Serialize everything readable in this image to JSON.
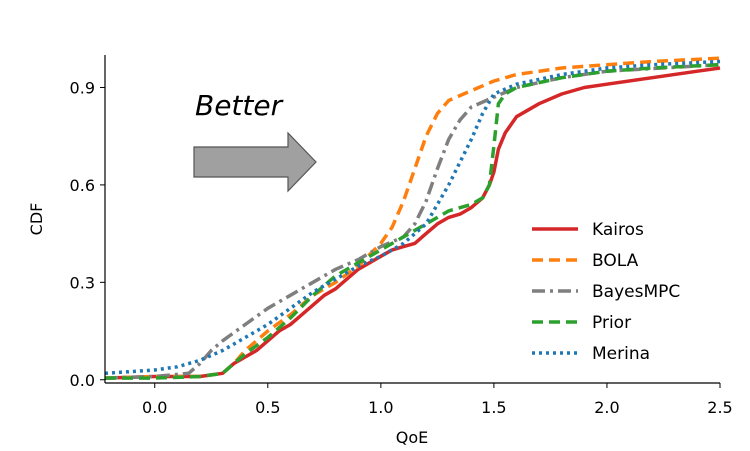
{
  "chart_data": {
    "type": "line",
    "xlabel": "QoE",
    "ylabel": "CDF",
    "xlim": [
      -0.22,
      2.5
    ],
    "ylim": [
      -0.01,
      1.0
    ],
    "xticks": [
      0.0,
      0.5,
      1.0,
      1.5,
      2.0,
      2.5
    ],
    "xtick_labels": [
      "0.0",
      "0.5",
      "1.0",
      "1.5",
      "2.0",
      "2.5"
    ],
    "yticks": [
      0.0,
      0.3,
      0.6,
      0.9
    ],
    "ytick_labels": [
      "0.0",
      "0.3",
      "0.6",
      "0.9"
    ],
    "legend_position": "lower-right",
    "annotation": {
      "text": "Better",
      "arrow_direction": "right"
    },
    "series": [
      {
        "name": "Kairos",
        "color": "#d62728",
        "dash": "solid",
        "points": [
          [
            -0.22,
            0.005
          ],
          [
            0.0,
            0.01
          ],
          [
            0.2,
            0.01
          ],
          [
            0.3,
            0.02
          ],
          [
            0.35,
            0.05
          ],
          [
            0.4,
            0.07
          ],
          [
            0.45,
            0.09
          ],
          [
            0.5,
            0.12
          ],
          [
            0.55,
            0.15
          ],
          [
            0.6,
            0.17
          ],
          [
            0.65,
            0.2
          ],
          [
            0.7,
            0.23
          ],
          [
            0.75,
            0.26
          ],
          [
            0.8,
            0.28
          ],
          [
            0.85,
            0.31
          ],
          [
            0.9,
            0.34
          ],
          [
            0.95,
            0.36
          ],
          [
            1.0,
            0.38
          ],
          [
            1.05,
            0.4
          ],
          [
            1.1,
            0.41
          ],
          [
            1.15,
            0.42
          ],
          [
            1.2,
            0.45
          ],
          [
            1.25,
            0.48
          ],
          [
            1.3,
            0.5
          ],
          [
            1.35,
            0.51
          ],
          [
            1.4,
            0.53
          ],
          [
            1.45,
            0.56
          ],
          [
            1.48,
            0.6
          ],
          [
            1.5,
            0.64
          ],
          [
            1.52,
            0.71
          ],
          [
            1.55,
            0.76
          ],
          [
            1.6,
            0.81
          ],
          [
            1.7,
            0.85
          ],
          [
            1.8,
            0.88
          ],
          [
            1.9,
            0.9
          ],
          [
            2.0,
            0.91
          ],
          [
            2.2,
            0.93
          ],
          [
            2.4,
            0.95
          ],
          [
            2.5,
            0.96
          ]
        ]
      },
      {
        "name": "BOLA",
        "color": "#ff7f0e",
        "dash": "dashed",
        "points": [
          [
            -0.22,
            0.005
          ],
          [
            0.0,
            0.01
          ],
          [
            0.2,
            0.01
          ],
          [
            0.3,
            0.02
          ],
          [
            0.35,
            0.05
          ],
          [
            0.4,
            0.09
          ],
          [
            0.45,
            0.12
          ],
          [
            0.5,
            0.15
          ],
          [
            0.6,
            0.2
          ],
          [
            0.7,
            0.26
          ],
          [
            0.8,
            0.3
          ],
          [
            0.9,
            0.35
          ],
          [
            1.0,
            0.42
          ],
          [
            1.05,
            0.47
          ],
          [
            1.1,
            0.55
          ],
          [
            1.15,
            0.65
          ],
          [
            1.2,
            0.75
          ],
          [
            1.25,
            0.82
          ],
          [
            1.3,
            0.86
          ],
          [
            1.4,
            0.89
          ],
          [
            1.5,
            0.92
          ],
          [
            1.6,
            0.94
          ],
          [
            1.8,
            0.96
          ],
          [
            2.0,
            0.97
          ],
          [
            2.2,
            0.98
          ],
          [
            2.5,
            0.99
          ]
        ]
      },
      {
        "name": "BayesMPC",
        "color": "#7f7f7f",
        "dash": "dashdot",
        "points": [
          [
            -0.22,
            0.005
          ],
          [
            0.0,
            0.01
          ],
          [
            0.15,
            0.02
          ],
          [
            0.2,
            0.05
          ],
          [
            0.25,
            0.09
          ],
          [
            0.3,
            0.12
          ],
          [
            0.4,
            0.17
          ],
          [
            0.5,
            0.22
          ],
          [
            0.6,
            0.26
          ],
          [
            0.7,
            0.3
          ],
          [
            0.8,
            0.34
          ],
          [
            0.9,
            0.37
          ],
          [
            1.0,
            0.41
          ],
          [
            1.1,
            0.44
          ],
          [
            1.15,
            0.48
          ],
          [
            1.2,
            0.55
          ],
          [
            1.25,
            0.65
          ],
          [
            1.3,
            0.74
          ],
          [
            1.35,
            0.8
          ],
          [
            1.4,
            0.84
          ],
          [
            1.5,
            0.87
          ],
          [
            1.6,
            0.9
          ],
          [
            1.8,
            0.93
          ],
          [
            2.0,
            0.95
          ],
          [
            2.5,
            0.97
          ]
        ]
      },
      {
        "name": "Prior",
        "color": "#2ca02c",
        "dash": "dashed",
        "points": [
          [
            -0.22,
            0.005
          ],
          [
            0.0,
            0.005
          ],
          [
            0.2,
            0.01
          ],
          [
            0.3,
            0.02
          ],
          [
            0.35,
            0.05
          ],
          [
            0.4,
            0.08
          ],
          [
            0.5,
            0.13
          ],
          [
            0.6,
            0.19
          ],
          [
            0.7,
            0.26
          ],
          [
            0.8,
            0.32
          ],
          [
            0.9,
            0.36
          ],
          [
            1.0,
            0.4
          ],
          [
            1.1,
            0.44
          ],
          [
            1.2,
            0.48
          ],
          [
            1.3,
            0.52
          ],
          [
            1.4,
            0.54
          ],
          [
            1.45,
            0.56
          ],
          [
            1.48,
            0.6
          ],
          [
            1.5,
            0.72
          ],
          [
            1.52,
            0.85
          ],
          [
            1.55,
            0.88
          ],
          [
            1.6,
            0.9
          ],
          [
            1.8,
            0.93
          ],
          [
            2.0,
            0.95
          ],
          [
            2.2,
            0.96
          ],
          [
            2.5,
            0.97
          ]
        ]
      },
      {
        "name": "Merina",
        "color": "#1f77b4",
        "dash": "dotted",
        "points": [
          [
            -0.22,
            0.02
          ],
          [
            0.0,
            0.03
          ],
          [
            0.1,
            0.04
          ],
          [
            0.2,
            0.06
          ],
          [
            0.3,
            0.09
          ],
          [
            0.4,
            0.13
          ],
          [
            0.5,
            0.17
          ],
          [
            0.6,
            0.22
          ],
          [
            0.7,
            0.27
          ],
          [
            0.8,
            0.31
          ],
          [
            0.9,
            0.35
          ],
          [
            1.0,
            0.38
          ],
          [
            1.1,
            0.42
          ],
          [
            1.2,
            0.48
          ],
          [
            1.3,
            0.6
          ],
          [
            1.4,
            0.74
          ],
          [
            1.45,
            0.82
          ],
          [
            1.5,
            0.88
          ],
          [
            1.6,
            0.91
          ],
          [
            1.8,
            0.94
          ],
          [
            2.0,
            0.96
          ],
          [
            2.2,
            0.97
          ],
          [
            2.5,
            0.98
          ]
        ]
      }
    ]
  }
}
